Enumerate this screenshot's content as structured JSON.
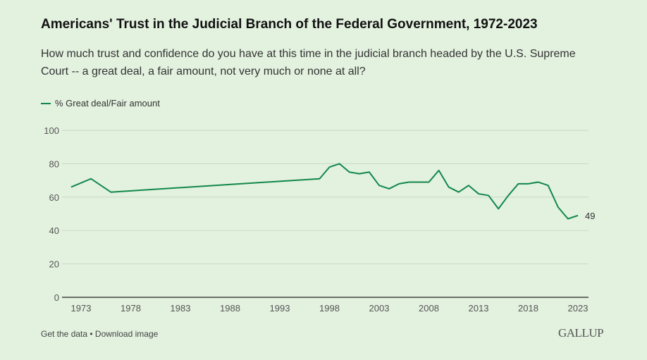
{
  "chart_data": {
    "type": "line",
    "title": "Americans' Trust in the Judicial Branch of the Federal Government, 1972-2023",
    "subtitle": "How much trust and confidence do you have at this time in the judicial branch headed by the U.S. Supreme Court -- a great deal, a fair amount, not very much or none at all?",
    "xlabel": "",
    "ylabel": "",
    "ylim": [
      0,
      100
    ],
    "xlim": [
      1972,
      2023
    ],
    "yticks": [
      0,
      20,
      40,
      60,
      80,
      100
    ],
    "xticks": [
      1973,
      1978,
      1983,
      1988,
      1993,
      1998,
      2003,
      2008,
      2013,
      2018,
      2023
    ],
    "legend": "top-left",
    "series": [
      {
        "name": "% Great deal/Fair amount",
        "color": "#11884a",
        "x": [
          1972,
          1974,
          1976,
          1997,
          1998,
          1999,
          2000,
          2001,
          2002,
          2003,
          2004,
          2005,
          2006,
          2007,
          2008,
          2009,
          2010,
          2011,
          2012,
          2013,
          2014,
          2015,
          2016,
          2017,
          2018,
          2019,
          2020,
          2021,
          2022,
          2023
        ],
        "y": [
          66,
          71,
          63,
          71,
          78,
          80,
          75,
          74,
          75,
          67,
          65,
          68,
          69,
          69,
          69,
          76,
          66,
          63,
          67,
          62,
          61,
          53,
          61,
          68,
          68,
          69,
          67,
          54,
          47,
          49
        ]
      }
    ],
    "end_label": "49"
  },
  "footer": "Get the data • Download image",
  "logo": "GALLUP"
}
